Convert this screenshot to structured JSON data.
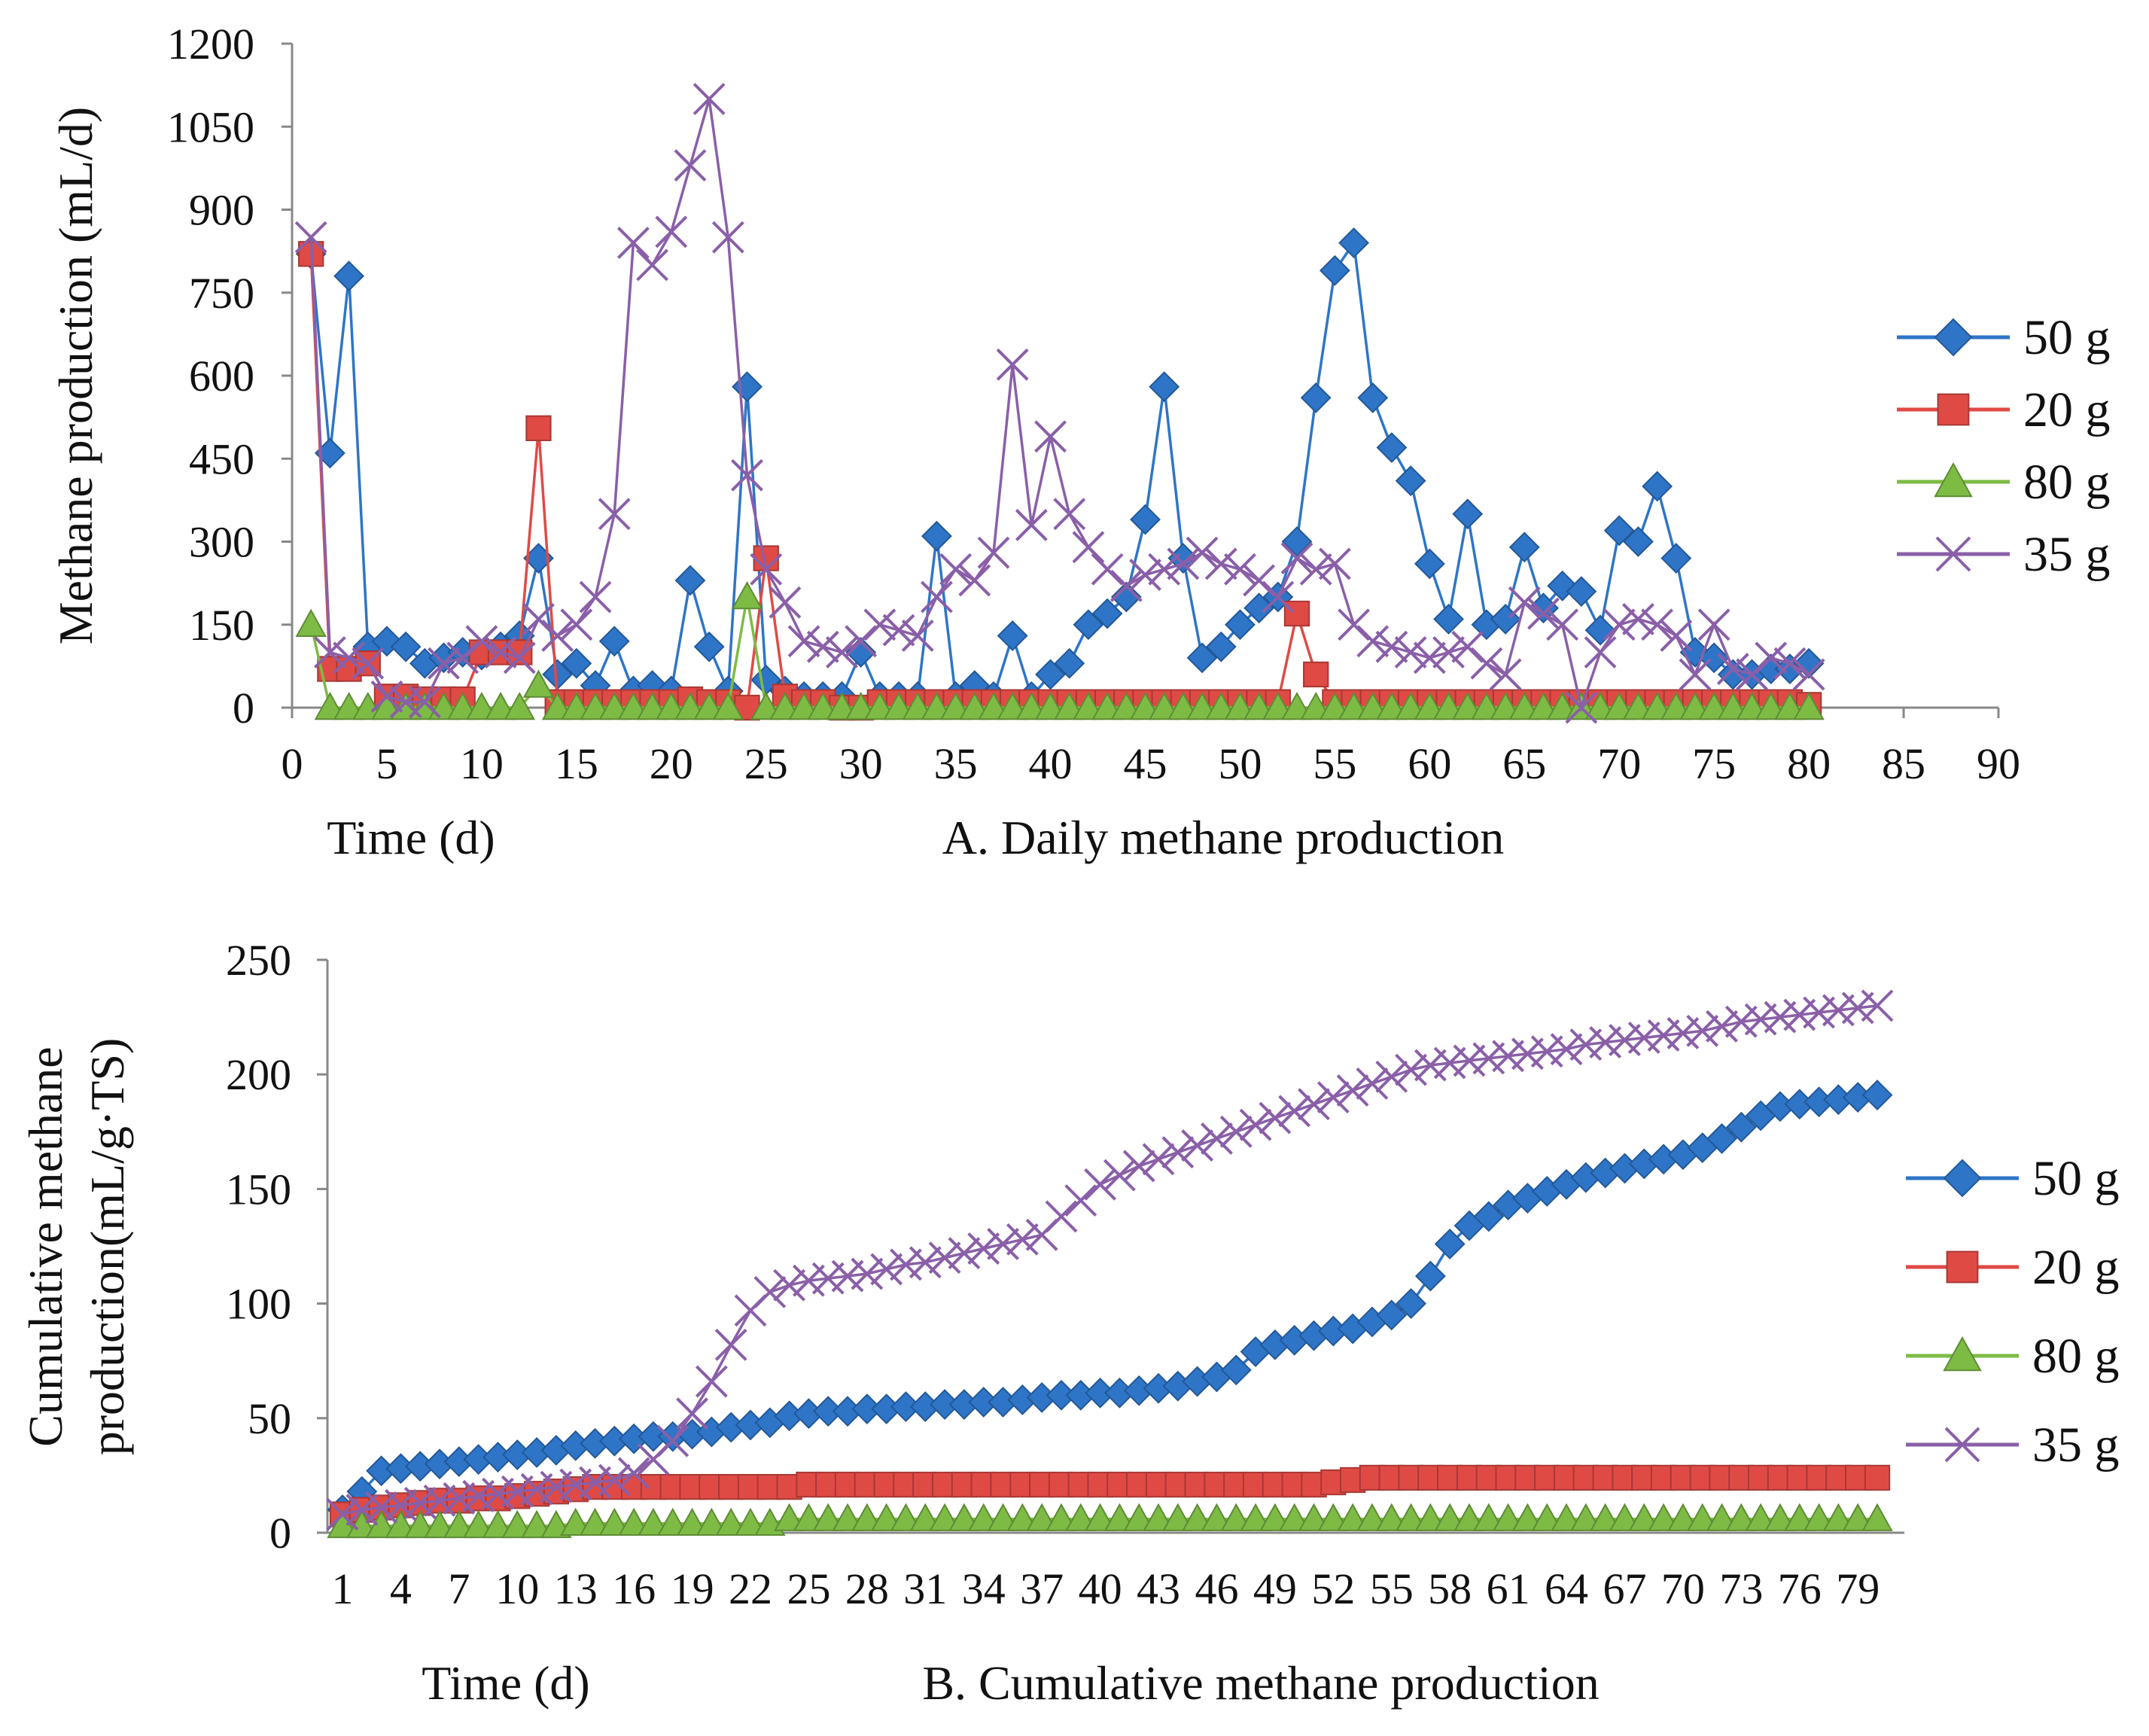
{
  "chart_data": [
    {
      "type": "line",
      "caption": "A. Daily methane production",
      "xlabel": "Time (d)",
      "ylabel": "Methane production (mL/d)",
      "xlim": [
        0,
        90
      ],
      "ylim": [
        0,
        1200
      ],
      "xticks": [
        "0",
        "5",
        "10",
        "15",
        "20",
        "25",
        "30",
        "35",
        "40",
        "45",
        "50",
        "55",
        "60",
        "65",
        "70",
        "75",
        "80",
        "85",
        "90"
      ],
      "yticks": [
        "0",
        "150",
        "300",
        "450",
        "600",
        "750",
        "900",
        "1050",
        "1200"
      ],
      "grid": false,
      "legend": "right",
      "series": [
        {
          "name": "50 g",
          "color": "#2e75c8",
          "marker": "diamond",
          "x": [
            1,
            2,
            3,
            4,
            5,
            6,
            7,
            8,
            9,
            10,
            11,
            12,
            13,
            14,
            15,
            16,
            17,
            18,
            19,
            20,
            21,
            22,
            23,
            24,
            25,
            26,
            27,
            28,
            29,
            30,
            31,
            32,
            33,
            34,
            35,
            36,
            37,
            38,
            39,
            40,
            41,
            42,
            43,
            44,
            45,
            46,
            47,
            48,
            49,
            50,
            51,
            52,
            53,
            54,
            55,
            56,
            57,
            58,
            59,
            60,
            61,
            62,
            63,
            64,
            65,
            66,
            67,
            68,
            69,
            70,
            71,
            72,
            73,
            74,
            75,
            76,
            77,
            78,
            79,
            80
          ],
          "y": [
            820,
            460,
            780,
            110,
            120,
            110,
            80,
            90,
            100,
            95,
            110,
            130,
            270,
            60,
            80,
            40,
            120,
            30,
            40,
            30,
            230,
            110,
            30,
            580,
            50,
            30,
            20,
            20,
            20,
            100,
            20,
            20,
            20,
            310,
            20,
            40,
            20,
            130,
            20,
            60,
            80,
            150,
            170,
            200,
            340,
            580,
            270,
            90,
            110,
            150,
            180,
            200,
            300,
            560,
            790,
            840,
            560,
            470,
            410,
            260,
            160,
            350,
            150,
            160,
            290,
            180,
            220,
            210,
            140,
            320,
            300,
            400,
            270,
            100,
            90,
            60,
            60,
            70,
            70,
            80
          ]
        },
        {
          "name": "20 g",
          "color": "#e04a45",
          "marker": "square",
          "x": [
            1,
            2,
            3,
            4,
            5,
            6,
            7,
            8,
            9,
            10,
            11,
            12,
            13,
            14,
            15,
            16,
            17,
            18,
            19,
            20,
            21,
            22,
            23,
            24,
            25,
            26,
            27,
            28,
            29,
            30,
            31,
            32,
            33,
            34,
            35,
            36,
            37,
            38,
            39,
            40,
            41,
            42,
            43,
            44,
            45,
            46,
            47,
            48,
            49,
            50,
            51,
            52,
            53,
            54,
            55,
            56,
            57,
            58,
            59,
            60,
            61,
            62,
            63,
            64,
            65,
            66,
            67,
            68,
            69,
            70,
            71,
            72,
            73,
            74,
            75,
            76,
            77,
            78,
            79,
            80
          ],
          "y": [
            820,
            70,
            70,
            80,
            20,
            20,
            15,
            15,
            15,
            100,
            100,
            100,
            505,
            10,
            10,
            10,
            10,
            10,
            10,
            10,
            15,
            10,
            10,
            0,
            270,
            20,
            10,
            10,
            0,
            0,
            10,
            10,
            10,
            10,
            10,
            10,
            10,
            10,
            10,
            10,
            10,
            10,
            10,
            10,
            10,
            10,
            10,
            10,
            10,
            10,
            10,
            10,
            170,
            60,
            10,
            10,
            10,
            10,
            10,
            10,
            10,
            10,
            10,
            10,
            10,
            10,
            10,
            10,
            10,
            10,
            10,
            10,
            10,
            10,
            10,
            10,
            10,
            10,
            10,
            5
          ]
        },
        {
          "name": "80 g",
          "color": "#7dbb45",
          "marker": "triangle",
          "x": [
            1,
            2,
            3,
            4,
            5,
            6,
            7,
            8,
            9,
            10,
            11,
            12,
            13,
            14,
            15,
            16,
            17,
            18,
            19,
            20,
            21,
            22,
            23,
            24,
            25,
            26,
            27,
            28,
            29,
            30,
            31,
            32,
            33,
            34,
            35,
            36,
            37,
            38,
            39,
            40,
            41,
            42,
            43,
            44,
            45,
            46,
            47,
            48,
            49,
            50,
            51,
            52,
            53,
            54,
            55,
            56,
            57,
            58,
            59,
            60,
            61,
            62,
            63,
            64,
            65,
            66,
            67,
            68,
            69,
            70,
            71,
            72,
            73,
            74,
            75,
            76,
            77,
            78,
            79,
            80
          ],
          "y": [
            150,
            0,
            0,
            0,
            0,
            0,
            0,
            0,
            0,
            0,
            0,
            0,
            40,
            0,
            0,
            0,
            0,
            0,
            0,
            0,
            0,
            0,
            0,
            200,
            0,
            0,
            0,
            0,
            0,
            0,
            0,
            0,
            0,
            0,
            0,
            0,
            0,
            0,
            0,
            0,
            0,
            0,
            0,
            0,
            0,
            0,
            0,
            0,
            0,
            0,
            0,
            0,
            0,
            0,
            0,
            0,
            0,
            0,
            0,
            0,
            0,
            0,
            0,
            0,
            0,
            0,
            0,
            0,
            0,
            0,
            0,
            0,
            0,
            0,
            0,
            0,
            0,
            0,
            0,
            0
          ]
        },
        {
          "name": "35 g",
          "color": "#8a5fa8",
          "marker": "x",
          "x": [
            1,
            2,
            3,
            4,
            5,
            6,
            7,
            8,
            9,
            10,
            11,
            12,
            13,
            14,
            15,
            16,
            17,
            18,
            19,
            20,
            21,
            22,
            23,
            24,
            25,
            26,
            27,
            28,
            29,
            30,
            31,
            32,
            33,
            34,
            35,
            36,
            37,
            38,
            39,
            40,
            41,
            42,
            43,
            44,
            45,
            46,
            47,
            48,
            49,
            50,
            51,
            52,
            53,
            54,
            55,
            56,
            57,
            58,
            59,
            60,
            61,
            62,
            63,
            64,
            65,
            66,
            67,
            68,
            69,
            70,
            71,
            72,
            73,
            74,
            75,
            76,
            77,
            78,
            79,
            80
          ],
          "y": [
            850,
            100,
            90,
            80,
            20,
            10,
            10,
            80,
            90,
            120,
            100,
            90,
            160,
            130,
            150,
            200,
            350,
            840,
            800,
            860,
            980,
            1100,
            850,
            420,
            250,
            190,
            120,
            110,
            100,
            120,
            150,
            140,
            130,
            200,
            250,
            230,
            280,
            620,
            330,
            490,
            350,
            290,
            250,
            220,
            240,
            250,
            260,
            280,
            260,
            250,
            230,
            200,
            270,
            250,
            260,
            150,
            120,
            110,
            100,
            90,
            100,
            110,
            80,
            60,
            190,
            170,
            150,
            0,
            100,
            150,
            160,
            150,
            130,
            60,
            150,
            70,
            60,
            90,
            80,
            60
          ]
        }
      ]
    },
    {
      "type": "line",
      "caption": "B. Cumulative methane production",
      "xlabel": "Time (d)",
      "ylabel": "Cumulative methane production (mL/g·TS)",
      "ylim": [
        0,
        250
      ],
      "categories": [
        "1",
        "2",
        "3",
        "4",
        "5",
        "6",
        "7",
        "8",
        "9",
        "10",
        "11",
        "12",
        "13",
        "14",
        "15",
        "16",
        "17",
        "18",
        "19",
        "20",
        "21",
        "22",
        "23",
        "24",
        "25",
        "26",
        "27",
        "28",
        "29",
        "30",
        "31",
        "32",
        "33",
        "34",
        "35",
        "36",
        "37",
        "38",
        "39",
        "40",
        "41",
        "42",
        "43",
        "44",
        "45",
        "46",
        "47",
        "48",
        "49",
        "50",
        "51",
        "52",
        "53",
        "54",
        "55",
        "56",
        "57",
        "58",
        "59",
        "60",
        "61",
        "62",
        "63",
        "64",
        "65",
        "66",
        "67",
        "68",
        "69",
        "70",
        "71",
        "72",
        "73",
        "74",
        "75",
        "76",
        "77",
        "78",
        "79",
        "80"
      ],
      "xticks": [
        "1",
        "4",
        "7",
        "10",
        "13",
        "16",
        "19",
        "22",
        "25",
        "28",
        "31",
        "34",
        "37",
        "40",
        "43",
        "46",
        "49",
        "52",
        "55",
        "58",
        "61",
        "64",
        "67",
        "70",
        "73",
        "76",
        "79"
      ],
      "yticks": [
        "0",
        "50",
        "100",
        "150",
        "200",
        "250"
      ],
      "grid": false,
      "legend": "right",
      "series": [
        {
          "name": "50 g",
          "color": "#2e75c8",
          "marker": "diamond",
          "values": [
            10,
            18,
            27,
            28,
            29,
            30,
            31,
            32,
            33,
            34,
            35,
            36,
            38,
            39,
            40,
            41,
            42,
            42,
            43,
            44,
            46,
            47,
            48,
            51,
            52,
            53,
            53,
            54,
            54,
            55,
            55,
            56,
            56,
            57,
            57,
            58,
            59,
            60,
            60,
            61,
            61,
            62,
            63,
            64,
            66,
            68,
            71,
            79,
            82,
            84,
            86,
            88,
            89,
            92,
            95,
            100,
            112,
            126,
            134,
            138,
            143,
            146,
            149,
            152,
            155,
            157,
            159,
            161,
            163,
            165,
            168,
            172,
            177,
            182,
            186,
            187,
            188,
            189,
            190,
            191
          ]
        },
        {
          "name": "20 g",
          "color": "#e04a45",
          "marker": "square",
          "values": [
            8,
            10,
            11,
            12,
            13,
            14,
            14,
            15,
            15,
            16,
            17,
            18,
            19,
            20,
            20,
            20,
            20,
            20,
            20,
            20,
            20,
            20,
            20,
            20,
            21,
            21,
            21,
            21,
            21,
            21,
            21,
            21,
            21,
            21,
            21,
            21,
            21,
            21,
            21,
            21,
            21,
            21,
            21,
            21,
            21,
            21,
            21,
            21,
            21,
            21,
            21,
            22,
            23,
            24,
            24,
            24,
            24,
            24,
            24,
            24,
            24,
            24,
            24,
            24,
            24,
            24,
            24,
            24,
            24,
            24,
            24,
            24,
            24,
            24,
            24,
            24,
            24,
            24,
            24,
            24
          ]
        },
        {
          "name": "80 g",
          "color": "#7dbb45",
          "marker": "triangle",
          "values": [
            3,
            3,
            3,
            3,
            3,
            3,
            3,
            3,
            3,
            3,
            3,
            3,
            4,
            4,
            4,
            4,
            4,
            4,
            4,
            4,
            4,
            4,
            4,
            6,
            6,
            6,
            6,
            6,
            6,
            6,
            6,
            6,
            6,
            6,
            6,
            6,
            6,
            6,
            6,
            6,
            6,
            6,
            6,
            6,
            6,
            6,
            6,
            6,
            6,
            6,
            6,
            6,
            6,
            6,
            6,
            6,
            6,
            6,
            6,
            6,
            6,
            6,
            6,
            6,
            6,
            6,
            6,
            6,
            6,
            6,
            6,
            6,
            6,
            6,
            6,
            6,
            6,
            6,
            6,
            6
          ]
        },
        {
          "name": "35 g",
          "color": "#8a5fa8",
          "marker": "x",
          "values": [
            8,
            10,
            11,
            12,
            13,
            14,
            15,
            16,
            17,
            18,
            19,
            20,
            21,
            22,
            23,
            26,
            32,
            40,
            52,
            66,
            82,
            97,
            105,
            108,
            110,
            111,
            112,
            113,
            115,
            117,
            118,
            120,
            122,
            124,
            126,
            128,
            130,
            138,
            145,
            152,
            156,
            160,
            163,
            166,
            169,
            172,
            175,
            178,
            181,
            184,
            187,
            190,
            193,
            196,
            199,
            202,
            204,
            205,
            206,
            207,
            208,
            209,
            210,
            211,
            213,
            214,
            215,
            216,
            217,
            218,
            219,
            221,
            223,
            224,
            225,
            226,
            227,
            228,
            229,
            230
          ]
        }
      ]
    }
  ]
}
